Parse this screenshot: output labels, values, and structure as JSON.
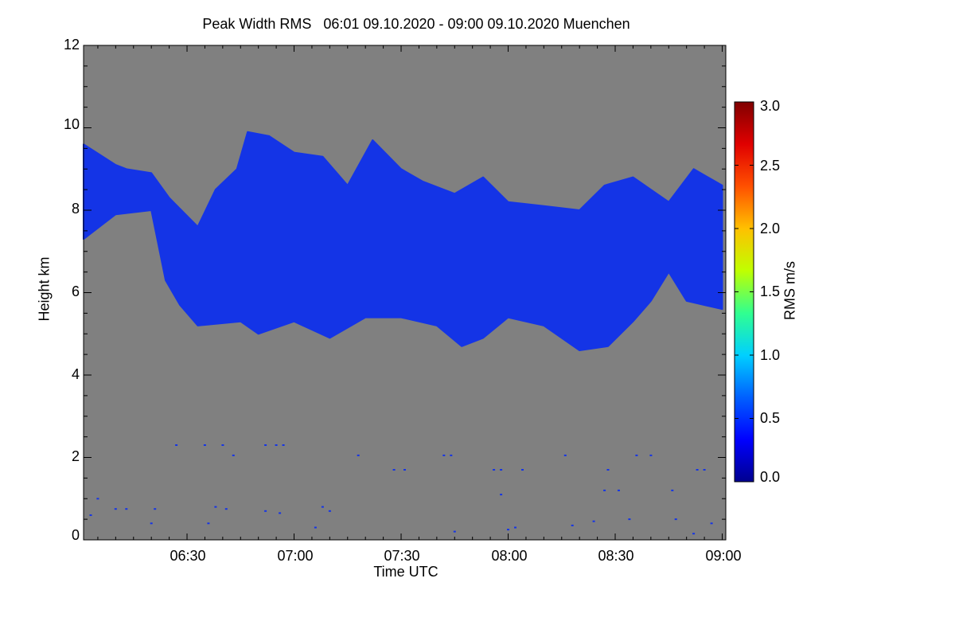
{
  "title": "Peak Width RMS   06:01 09.10.2020 - 09:00 09.10.2020 Muenchen",
  "chart_data": {
    "type": "heatmap",
    "title": "Peak Width RMS   06:01 09.10.2020 - 09:00 09.10.2020 Muenchen",
    "xlabel": "Time UTC",
    "ylabel": "Height km",
    "x_range": [
      "06:01",
      "09:01"
    ],
    "x_ticks": [
      "06:30",
      "07:00",
      "07:30",
      "08:00",
      "08:30",
      "09:00"
    ],
    "ylim": [
      0,
      12
    ],
    "y_ticks": [
      "0",
      "2",
      "4",
      "6",
      "8",
      "10",
      "12"
    ],
    "background_color": "#808080",
    "colorbar": {
      "label": "RMS m/s",
      "range": [
        0.0,
        3.0
      ],
      "ticks": [
        "0.0",
        "0.5",
        "1.0",
        "1.5",
        "2.0",
        "2.5",
        "3.0"
      ],
      "colors": [
        "#00008f",
        "#0000ff",
        "#0060ff",
        "#00d0ff",
        "#30ff90",
        "#c0ff00",
        "#ffc000",
        "#ff5000",
        "#e00000",
        "#800000"
      ]
    },
    "cloud_layer": {
      "value_rms": 0.4,
      "color": "#1434e6",
      "base_km": [
        [
          "06:01",
          7.3
        ],
        [
          "06:10",
          7.9
        ],
        [
          "06:20",
          8.0
        ],
        [
          "06:24",
          6.3
        ],
        [
          "06:28",
          5.7
        ],
        [
          "06:33",
          5.2
        ],
        [
          "06:45",
          5.3
        ],
        [
          "06:50",
          5.0
        ],
        [
          "07:00",
          5.3
        ],
        [
          "07:10",
          4.9
        ],
        [
          "07:20",
          5.4
        ],
        [
          "07:30",
          5.4
        ],
        [
          "07:40",
          5.2
        ],
        [
          "07:47",
          4.7
        ],
        [
          "07:53",
          4.9
        ],
        [
          "08:00",
          5.4
        ],
        [
          "08:10",
          5.2
        ],
        [
          "08:20",
          4.6
        ],
        [
          "08:28",
          4.7
        ],
        [
          "08:35",
          5.3
        ],
        [
          "08:40",
          5.8
        ],
        [
          "08:45",
          6.5
        ],
        [
          "08:50",
          5.8
        ],
        [
          "09:00",
          5.6
        ]
      ],
      "top_km": [
        [
          "06:01",
          9.6
        ],
        [
          "06:10",
          9.1
        ],
        [
          "06:13",
          9.0
        ],
        [
          "06:20",
          8.9
        ],
        [
          "06:25",
          8.3
        ],
        [
          "06:33",
          7.6
        ],
        [
          "06:38",
          8.5
        ],
        [
          "06:44",
          9.0
        ],
        [
          "06:47",
          9.9
        ],
        [
          "06:53",
          9.8
        ],
        [
          "07:00",
          9.4
        ],
        [
          "07:08",
          9.3
        ],
        [
          "07:15",
          8.6
        ],
        [
          "07:22",
          9.7
        ],
        [
          "07:30",
          9.0
        ],
        [
          "07:36",
          8.7
        ],
        [
          "07:45",
          8.4
        ],
        [
          "07:53",
          8.8
        ],
        [
          "08:00",
          8.2
        ],
        [
          "08:10",
          8.1
        ],
        [
          "08:20",
          8.0
        ],
        [
          "08:27",
          8.6
        ],
        [
          "08:35",
          8.8
        ],
        [
          "08:45",
          8.2
        ],
        [
          "08:52",
          9.0
        ],
        [
          "09:00",
          8.6
        ]
      ]
    },
    "low_level_echoes": {
      "color": "#1434e6",
      "points": [
        [
          "06:27",
          2.3
        ],
        [
          "06:35",
          2.3
        ],
        [
          "06:40",
          2.3
        ],
        [
          "06:52",
          2.3
        ],
        [
          "06:55",
          2.3
        ],
        [
          "06:57",
          2.3
        ],
        [
          "06:43",
          2.05
        ],
        [
          "07:18",
          2.05
        ],
        [
          "07:42",
          2.05
        ],
        [
          "07:44",
          2.05
        ],
        [
          "08:16",
          2.05
        ],
        [
          "08:36",
          2.05
        ],
        [
          "08:40",
          2.05
        ],
        [
          "07:28",
          1.7
        ],
        [
          "07:31",
          1.7
        ],
        [
          "07:56",
          1.7
        ],
        [
          "07:58",
          1.7
        ],
        [
          "08:04",
          1.7
        ],
        [
          "08:28",
          1.7
        ],
        [
          "08:53",
          1.7
        ],
        [
          "08:55",
          1.7
        ],
        [
          "08:27",
          1.2
        ],
        [
          "08:31",
          1.2
        ],
        [
          "08:46",
          1.2
        ],
        [
          "07:58",
          1.1
        ],
        [
          "06:05",
          1.0
        ],
        [
          "06:10",
          0.75
        ],
        [
          "06:13",
          0.75
        ],
        [
          "06:21",
          0.75
        ],
        [
          "06:38",
          0.8
        ],
        [
          "06:41",
          0.75
        ],
        [
          "06:52",
          0.7
        ],
        [
          "07:08",
          0.8
        ],
        [
          "07:10",
          0.7
        ],
        [
          "06:03",
          0.6
        ],
        [
          "06:20",
          0.4
        ],
        [
          "06:36",
          0.4
        ],
        [
          "06:56",
          0.65
        ],
        [
          "07:06",
          0.3
        ],
        [
          "07:45",
          0.2
        ],
        [
          "08:00",
          0.25
        ],
        [
          "08:02",
          0.3
        ],
        [
          "08:18",
          0.35
        ],
        [
          "08:24",
          0.45
        ],
        [
          "08:34",
          0.5
        ],
        [
          "08:47",
          0.5
        ],
        [
          "08:52",
          0.15
        ],
        [
          "08:57",
          0.4
        ]
      ]
    }
  }
}
